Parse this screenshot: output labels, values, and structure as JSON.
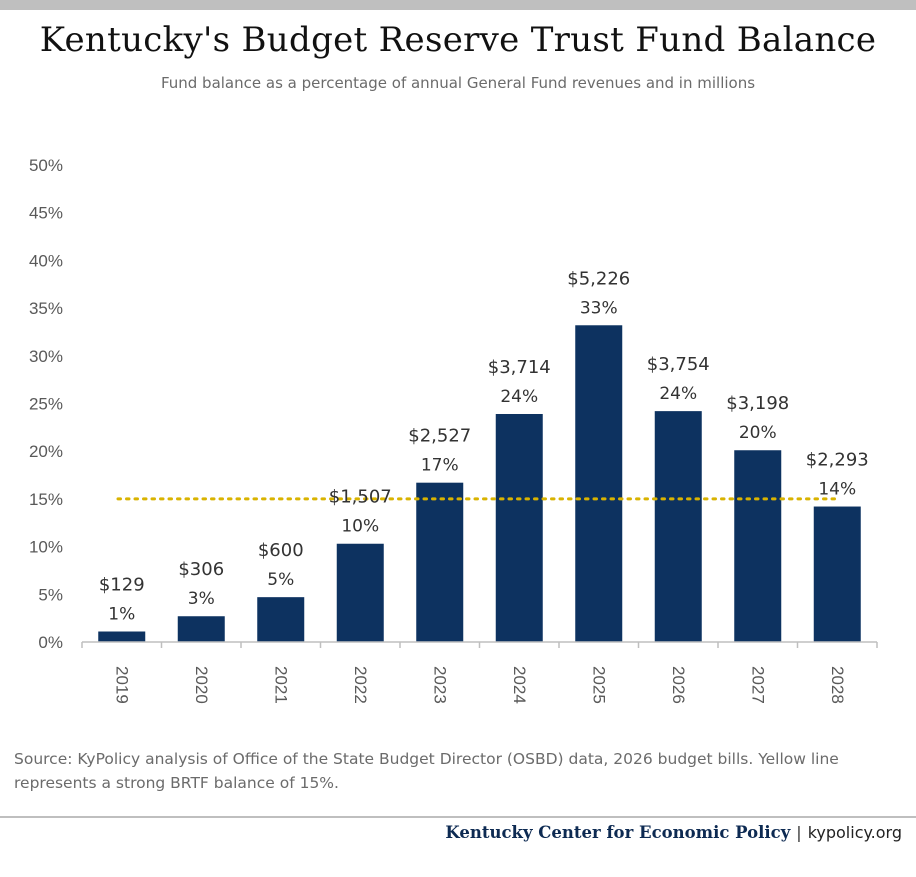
{
  "title": "Kentucky's Budget Reserve Trust Fund Balance",
  "subtitle": "Fund balance as a percentage of annual General Fund revenues and in millions",
  "source": "Source: KyPolicy analysis of Office of the State Budget Director (OSBD) data, 2026 budget bills. Yellow line represents a strong BRTF balance of 15%.",
  "footer": {
    "org": "Kentucky Center for Economic Policy",
    "separator": "|",
    "site": "kypolicy.org"
  },
  "colors": {
    "bar": "#0d3260",
    "reference_line": "#d9b300",
    "axis_text": "#595959",
    "label_text": "#333333"
  },
  "chart_data": {
    "type": "bar",
    "categories": [
      "2019",
      "2020",
      "2021",
      "2022",
      "2023",
      "2024",
      "2025",
      "2026",
      "2027",
      "2028"
    ],
    "values": [
      1.1,
      2.7,
      4.7,
      10.3,
      16.7,
      23.9,
      33.2,
      24.2,
      20.1,
      14.2
    ],
    "value_labels": [
      "1%",
      "3%",
      "5%",
      "10%",
      "17%",
      "24%",
      "33%",
      "24%",
      "20%",
      "14%"
    ],
    "dollar_labels": [
      "$129",
      "$306",
      "$600",
      "$1,507",
      "$2,527",
      "$3,714",
      "$5,226",
      "$3,754",
      "$3,198",
      "$2,293"
    ],
    "y_ticks": [
      "0%",
      "5%",
      "10%",
      "15%",
      "20%",
      "25%",
      "30%",
      "35%",
      "40%",
      "45%",
      "50%"
    ],
    "ylim": [
      0,
      50
    ],
    "reference_line": {
      "value": 15,
      "style": "dotted"
    },
    "grid": false,
    "legend": "none"
  }
}
